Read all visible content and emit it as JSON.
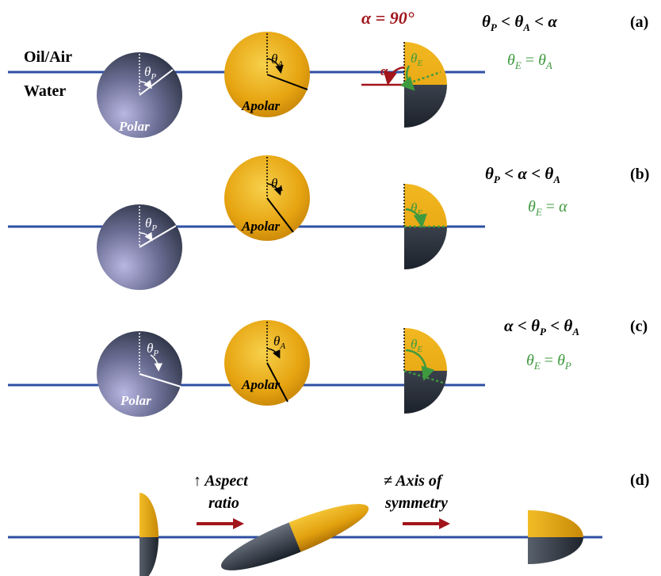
{
  "labels": {
    "oil_air": "Oil/Air",
    "water": "Water",
    "polar": "Polar",
    "apolar": "Apolar",
    "alpha_value": "α = 90°",
    "alpha": "α"
  },
  "symbols": {
    "theta": "θ",
    "P": "P",
    "A": "A",
    "E": "E",
    "alpha": "α",
    "less_than": "<",
    "equals": "="
  },
  "panels": {
    "a": {
      "label": "(a)",
      "condition": "θP < θA < α",
      "result": "θE = θA"
    },
    "b": {
      "label": "(b)",
      "condition": "θP < α < θA",
      "result": "θE = α"
    },
    "c": {
      "label": "(c)",
      "condition": "α < θP < θA",
      "result": "θE = θP"
    },
    "d": {
      "label": "(d)",
      "step1": [
        "↑ Aspect",
        "ratio"
      ],
      "step2": [
        "≠ Axis of",
        "symmetry"
      ]
    }
  },
  "colors": {
    "interface_line": "#2e4fa3",
    "gold": "#e9a90f",
    "dark_grey": "#3c4450",
    "polar_light": "#a9a8d6",
    "polar_dark": "#222a36",
    "alpha_red": "#a1151b",
    "theta_e_green": "#3f9a3f",
    "arrow_red": "#a1151b"
  }
}
